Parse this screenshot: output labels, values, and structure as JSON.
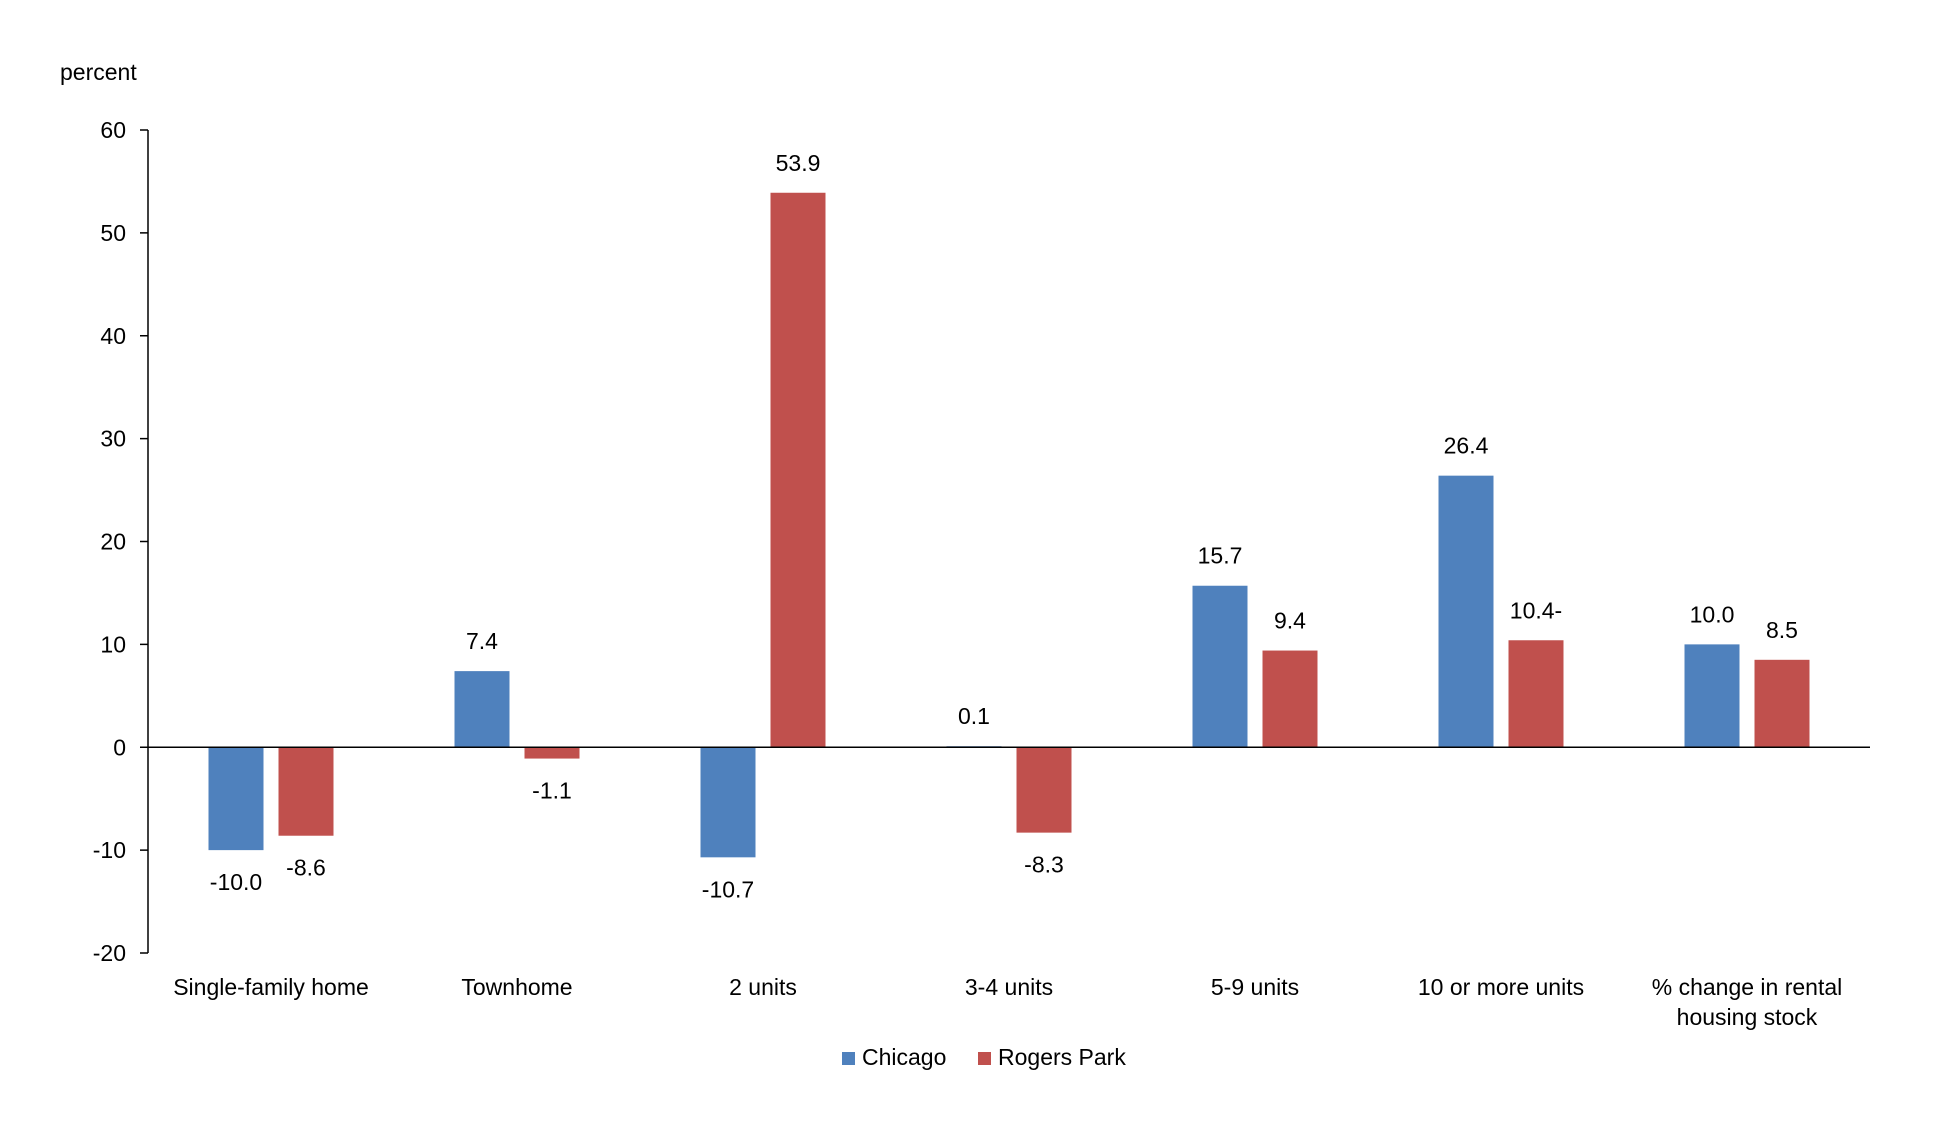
{
  "chart_data": {
    "type": "bar",
    "title": "",
    "xlabel": "",
    "ylabel": "percent",
    "ylim": [
      -20,
      60
    ],
    "yticks": [
      -20,
      -10,
      0,
      10,
      20,
      30,
      40,
      50,
      60
    ],
    "grid": false,
    "legend": "bottom-center",
    "categories": [
      [
        "Single-family home"
      ],
      [
        "Townhome"
      ],
      [
        "2 units"
      ],
      [
        "3-4 units"
      ],
      [
        "5-9 units"
      ],
      [
        "10 or more units"
      ],
      [
        "% change in rental",
        "housing stock"
      ]
    ],
    "series": [
      {
        "name": "Chicago",
        "color": "#4F81BD",
        "values": [
          -10.0,
          7.4,
          -10.7,
          0.1,
          15.7,
          26.4,
          10.0
        ],
        "labels": [
          "-10.0",
          "7.4",
          "-10.7",
          "0.1",
          "15.7",
          "26.4",
          "10.0"
        ]
      },
      {
        "name": "Rogers Park",
        "color": "#C0504D",
        "values": [
          -8.6,
          -1.1,
          53.9,
          -8.3,
          9.4,
          10.4,
          8.5
        ],
        "labels": [
          "-8.6",
          "-1.1",
          "53.9",
          "-8.3",
          "9.4",
          "10.4-",
          "8.5"
        ]
      }
    ]
  }
}
